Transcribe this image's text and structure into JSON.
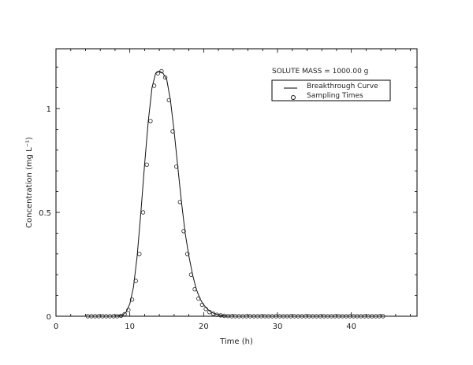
{
  "chart_data": {
    "type": "line",
    "title": "",
    "annotation": "SOLUTE MASS = 1000.00 g",
    "xlabel": "Time (h)",
    "ylabel": "Concentration (mg L⁻¹)",
    "xlim": [
      0,
      48.9
    ],
    "ylim": [
      0,
      1.25
    ],
    "xticks": [
      0,
      10,
      20,
      30,
      40
    ],
    "xtick_labels": [
      "0",
      "10",
      "20",
      "30",
      "40"
    ],
    "yticks": [
      0,
      0.5,
      1
    ],
    "ytick_labels": [
      "0",
      "0.5",
      "1"
    ],
    "grid": false,
    "legend": {
      "position": "upper right",
      "entries": [
        {
          "label": "Breakthrough Curve",
          "marker": "line"
        },
        {
          "label": "Sampling Times",
          "marker": "circle"
        }
      ]
    },
    "series": [
      {
        "name": "Breakthrough Curve",
        "style": "line",
        "x": [
          4.0,
          8.0,
          9.0,
          9.5,
          10.0,
          10.5,
          11.0,
          11.5,
          12.0,
          12.5,
          13.0,
          13.5,
          14.0,
          14.5,
          15.0,
          15.5,
          16.0,
          16.5,
          17.0,
          17.5,
          18.0,
          18.5,
          19.0,
          19.5,
          20.0,
          20.5,
          21.0,
          21.5,
          22.0,
          22.5,
          23.0,
          23.5,
          24.0,
          25.0,
          26.0,
          28.0,
          45.0
        ],
        "y": [
          0.0,
          0.0,
          0.005,
          0.02,
          0.06,
          0.14,
          0.29,
          0.5,
          0.73,
          0.94,
          1.1,
          1.17,
          1.18,
          1.17,
          1.14,
          1.04,
          0.89,
          0.72,
          0.55,
          0.4,
          0.29,
          0.2,
          0.13,
          0.085,
          0.055,
          0.035,
          0.02,
          0.012,
          0.007,
          0.004,
          0.002,
          0.001,
          0.0,
          0.0,
          0.0,
          0.0,
          0.0
        ]
      },
      {
        "name": "Sampling Times",
        "style": "circle",
        "x": [
          4.3,
          4.8,
          5.3,
          5.8,
          6.3,
          6.8,
          7.3,
          7.8,
          8.3,
          8.8,
          9.3,
          9.8,
          10.3,
          10.8,
          11.3,
          11.8,
          12.3,
          12.8,
          13.3,
          13.8,
          14.3,
          14.8,
          15.3,
          15.8,
          16.3,
          16.8,
          17.3,
          17.8,
          18.3,
          18.8,
          19.3,
          19.8,
          20.3,
          20.8,
          21.3,
          21.8,
          22.3,
          22.8,
          23.3,
          23.8,
          24.3,
          24.8,
          25.3,
          25.8,
          26.3,
          26.8,
          27.3,
          27.8,
          28.3,
          28.8,
          29.3,
          29.8,
          30.3,
          30.8,
          31.3,
          31.8,
          32.3,
          32.8,
          33.3,
          33.8,
          34.3,
          34.8,
          35.3,
          35.8,
          36.3,
          36.8,
          37.3,
          37.8,
          38.3,
          38.8,
          39.3,
          39.8,
          40.3,
          40.8,
          41.3,
          41.8,
          42.3,
          42.8,
          43.3,
          43.8,
          44.3
        ],
        "y": [
          0,
          0,
          0,
          0,
          0,
          0,
          0,
          0,
          0.0,
          0.002,
          0.01,
          0.03,
          0.08,
          0.17,
          0.3,
          0.5,
          0.73,
          0.94,
          1.11,
          1.17,
          1.18,
          1.15,
          1.04,
          0.89,
          0.72,
          0.55,
          0.41,
          0.3,
          0.2,
          0.13,
          0.085,
          0.055,
          0.035,
          0.02,
          0.012,
          0.007,
          0.004,
          0.002,
          0.001,
          0,
          0,
          0,
          0,
          0,
          0,
          0,
          0,
          0,
          0,
          0,
          0,
          0,
          0,
          0,
          0,
          0,
          0,
          0,
          0,
          0,
          0,
          0,
          0,
          0,
          0,
          0,
          0,
          0,
          0,
          0,
          0,
          0,
          0,
          0,
          0,
          0,
          0,
          0,
          0,
          0,
          0
        ]
      }
    ]
  }
}
